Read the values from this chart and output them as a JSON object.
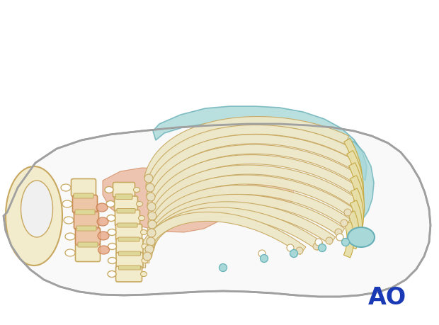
{
  "background_color": "#ffffff",
  "body_outline_color": "#a0a0a0",
  "bone_fill_color": "#f2eccc",
  "bone_stroke_color": "#c8a860",
  "rib_fill_color": "#ede8c8",
  "rib_stroke_color": "#c8a860",
  "highlight_pink_color": "#e8a888",
  "highlight_pink_dark": "#c87848",
  "highlight_blue_color": "#a8d8d8",
  "highlight_blue_dark": "#68b0b8",
  "cart_fill_color": "#e8dfa8",
  "cart_stroke_color": "#c4a840",
  "ao_color": "#1a3ab5",
  "ao_text": "AO",
  "ao_fontsize": 24,
  "fig_width": 6.2,
  "fig_height": 4.59,
  "dpi": 100
}
